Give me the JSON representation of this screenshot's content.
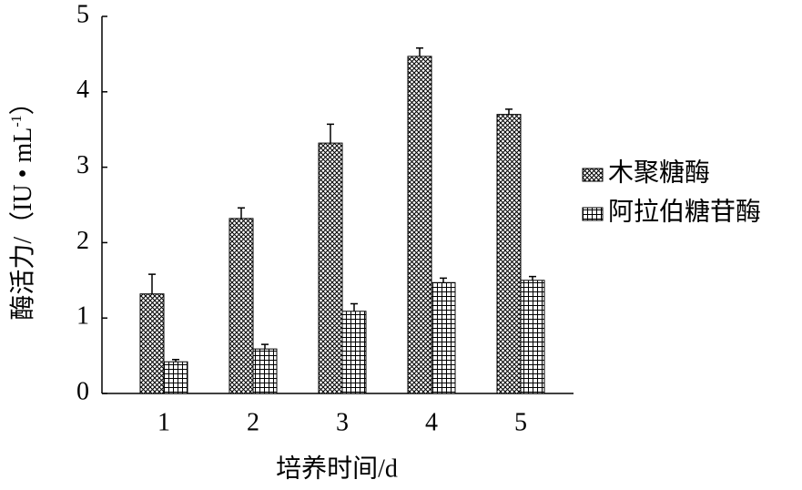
{
  "chart_data": {
    "type": "bar",
    "xlabel": "培养时间/d",
    "ylabel": "酶活力/（IU • mL",
    "ylabel_sup": "-1",
    "ylabel_end": "）",
    "categories": [
      "1",
      "2",
      "3",
      "4",
      "5"
    ],
    "series": [
      {
        "name": "木聚糖酶",
        "color": "#000000",
        "pattern": "crosshatch",
        "values": [
          1.32,
          2.32,
          3.32,
          4.47,
          3.7
        ],
        "errors": [
          0.26,
          0.14,
          0.25,
          0.11,
          0.07
        ]
      },
      {
        "name": "阿拉伯糖苷酶",
        "color": "#000000",
        "pattern": "grid",
        "values": [
          0.42,
          0.59,
          1.09,
          1.47,
          1.5
        ],
        "errors": [
          0.03,
          0.06,
          0.1,
          0.06,
          0.05
        ]
      }
    ],
    "ylim": [
      0,
      5
    ],
    "yticks": [
      0,
      1,
      2,
      3,
      4,
      5
    ],
    "grid": false,
    "legend": "right"
  }
}
